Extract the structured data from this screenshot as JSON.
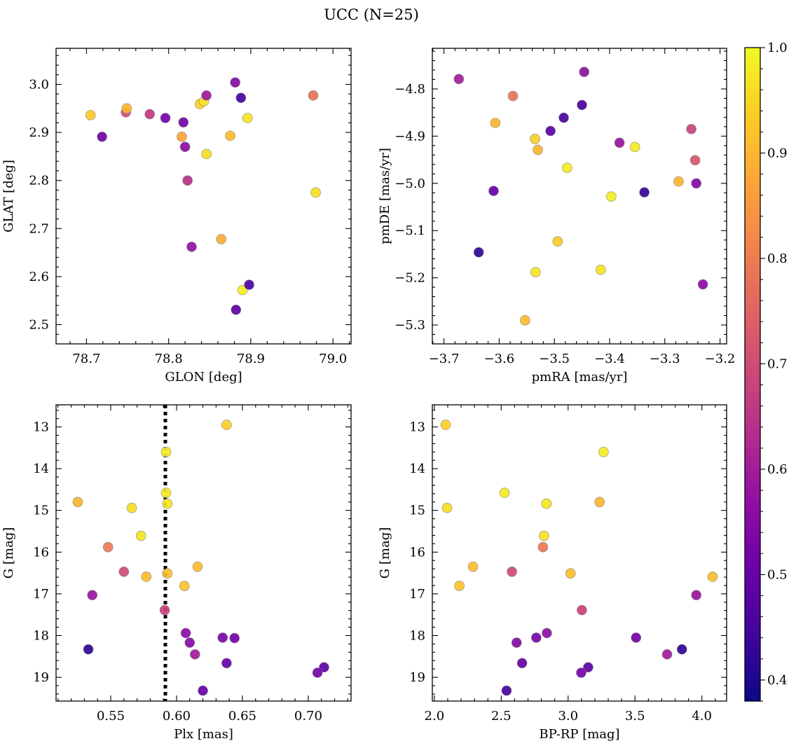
{
  "figure": {
    "title": "UCC (N=25)"
  },
  "colorbar": {
    "range": [
      0.38,
      1.0
    ],
    "ticks": [
      0.4,
      0.5,
      0.6,
      0.7,
      0.8,
      0.9,
      1.0
    ],
    "tick_labels": [
      "0.4",
      "0.5",
      "0.6",
      "0.7",
      "0.8",
      "0.9",
      "1.0"
    ],
    "colormap": "plasma"
  },
  "chart_data": [
    {
      "type": "scatter",
      "id": "glon-glat",
      "xlabel": "GLON [deg]",
      "ylabel": "GLAT [deg]",
      "xlim": [
        78.663,
        79.022
      ],
      "ylim": [
        2.46,
        3.075
      ],
      "y_inverted": false,
      "xticks": [
        78.7,
        78.8,
        78.9,
        79.0
      ],
      "xtick_labels": [
        "78.7",
        "78.8",
        "78.9",
        "79.0"
      ],
      "yticks": [
        2.5,
        2.6,
        2.7,
        2.8,
        2.9,
        3.0
      ],
      "ytick_labels": [
        "2.5",
        "2.6",
        "2.7",
        "2.8",
        "2.9",
        "3.0"
      ],
      "points": [
        {
          "x": 78.705,
          "y": 2.936,
          "c": 0.93
        },
        {
          "x": 78.719,
          "y": 2.891,
          "c": 0.52
        },
        {
          "x": 78.748,
          "y": 2.942,
          "c": 0.7
        },
        {
          "x": 78.749,
          "y": 2.95,
          "c": 0.9
        },
        {
          "x": 78.777,
          "y": 2.938,
          "c": 0.66
        },
        {
          "x": 78.796,
          "y": 2.93,
          "c": 0.52
        },
        {
          "x": 78.816,
          "y": 2.891,
          "c": 0.87
        },
        {
          "x": 78.818,
          "y": 2.921,
          "c": 0.52
        },
        {
          "x": 78.82,
          "y": 2.87,
          "c": 0.56
        },
        {
          "x": 78.823,
          "y": 2.8,
          "c": 0.64
        },
        {
          "x": 78.828,
          "y": 2.662,
          "c": 0.57
        },
        {
          "x": 78.838,
          "y": 2.959,
          "c": 0.94
        },
        {
          "x": 78.843,
          "y": 2.965,
          "c": 0.97
        },
        {
          "x": 78.846,
          "y": 2.855,
          "c": 0.96
        },
        {
          "x": 78.846,
          "y": 2.977,
          "c": 0.59
        },
        {
          "x": 78.864,
          "y": 2.678,
          "c": 0.88
        },
        {
          "x": 78.875,
          "y": 2.893,
          "c": 0.91
        },
        {
          "x": 78.881,
          "y": 3.004,
          "c": 0.55
        },
        {
          "x": 78.882,
          "y": 2.531,
          "c": 0.48
        },
        {
          "x": 78.888,
          "y": 2.972,
          "c": 0.45
        },
        {
          "x": 78.89,
          "y": 2.572,
          "c": 0.98
        },
        {
          "x": 78.896,
          "y": 2.93,
          "c": 0.97
        },
        {
          "x": 78.898,
          "y": 2.583,
          "c": 0.46
        },
        {
          "x": 78.976,
          "y": 2.977,
          "c": 0.78
        },
        {
          "x": 78.979,
          "y": 2.775,
          "c": 0.96
        }
      ]
    },
    {
      "type": "scatter",
      "id": "pmra-pmde",
      "xlabel": "pmRA [mas/yr]",
      "ylabel": "pmDE [mas/yr]",
      "xlim": [
        -3.721,
        -3.188
      ],
      "ylim": [
        -5.34,
        -4.714
      ],
      "y_inverted": false,
      "xticks": [
        -3.7,
        -3.6,
        -3.5,
        -3.4,
        -3.3,
        -3.2
      ],
      "xtick_labels": [
        "−3.7",
        "−3.6",
        "−3.5",
        "−3.4",
        "−3.3",
        "−3.2"
      ],
      "yticks": [
        -5.3,
        -5.2,
        -5.1,
        -5.0,
        -4.9,
        -4.8
      ],
      "ytick_labels": [
        "−5.3",
        "−5.2",
        "−5.1",
        "−5.0",
        "−4.9",
        "−4.8"
      ],
      "points": [
        {
          "x": -3.673,
          "y": -4.779,
          "c": 0.6
        },
        {
          "x": -3.637,
          "y": -5.146,
          "c": 0.42
        },
        {
          "x": -3.61,
          "y": -5.016,
          "c": 0.5
        },
        {
          "x": -3.607,
          "y": -4.872,
          "c": 0.9
        },
        {
          "x": -3.575,
          "y": -4.815,
          "c": 0.78
        },
        {
          "x": -3.553,
          "y": -5.29,
          "c": 0.91
        },
        {
          "x": -3.535,
          "y": -4.906,
          "c": 0.94
        },
        {
          "x": -3.534,
          "y": -5.188,
          "c": 0.97
        },
        {
          "x": -3.53,
          "y": -4.929,
          "c": 0.9
        },
        {
          "x": -3.507,
          "y": -4.889,
          "c": 0.48
        },
        {
          "x": -3.494,
          "y": -5.123,
          "c": 0.93
        },
        {
          "x": -3.483,
          "y": -4.861,
          "c": 0.45
        },
        {
          "x": -3.477,
          "y": -4.967,
          "c": 0.98
        },
        {
          "x": -3.45,
          "y": -4.834,
          "c": 0.45
        },
        {
          "x": -3.446,
          "y": -4.764,
          "c": 0.57
        },
        {
          "x": -3.416,
          "y": -5.183,
          "c": 0.97
        },
        {
          "x": -3.397,
          "y": -5.028,
          "c": 0.98
        },
        {
          "x": -3.382,
          "y": -4.914,
          "c": 0.58
        },
        {
          "x": -3.354,
          "y": -4.923,
          "c": 0.98
        },
        {
          "x": -3.337,
          "y": -5.019,
          "c": 0.43
        },
        {
          "x": -3.275,
          "y": -4.996,
          "c": 0.9
        },
        {
          "x": -3.252,
          "y": -4.885,
          "c": 0.68
        },
        {
          "x": -3.245,
          "y": -4.951,
          "c": 0.72
        },
        {
          "x": -3.243,
          "y": -5.0,
          "c": 0.55
        },
        {
          "x": -3.231,
          "y": -5.214,
          "c": 0.56
        }
      ]
    },
    {
      "type": "scatter",
      "id": "plx-g",
      "xlabel": "Plx [mas]",
      "ylabel": "G [mag]",
      "xlim": [
        0.5085,
        0.7325
      ],
      "ylim": [
        19.57,
        12.47
      ],
      "y_inverted": true,
      "xticks": [
        0.55,
        0.6,
        0.65,
        0.7
      ],
      "xtick_labels": [
        "0.55",
        "0.60",
        "0.65",
        "0.70"
      ],
      "yticks": [
        13,
        14,
        15,
        16,
        17,
        18,
        19
      ],
      "ytick_labels": [
        "13",
        "14",
        "15",
        "16",
        "17",
        "18",
        "19"
      ],
      "reference_line_x": 0.5915,
      "points": [
        {
          "x": 0.638,
          "y": 12.95,
          "c": 0.94
        },
        {
          "x": 0.592,
          "y": 13.6,
          "c": 0.98
        },
        {
          "x": 0.592,
          "y": 14.58,
          "c": 0.98
        },
        {
          "x": 0.525,
          "y": 14.8,
          "c": 0.9
        },
        {
          "x": 0.566,
          "y": 14.94,
          "c": 0.96
        },
        {
          "x": 0.593,
          "y": 14.84,
          "c": 0.97
        },
        {
          "x": 0.573,
          "y": 15.61,
          "c": 0.97
        },
        {
          "x": 0.548,
          "y": 15.88,
          "c": 0.79
        },
        {
          "x": 0.616,
          "y": 16.35,
          "c": 0.91
        },
        {
          "x": 0.56,
          "y": 16.47,
          "c": 0.7
        },
        {
          "x": 0.593,
          "y": 16.51,
          "c": 0.91
        },
        {
          "x": 0.577,
          "y": 16.59,
          "c": 0.91
        },
        {
          "x": 0.606,
          "y": 16.81,
          "c": 0.92
        },
        {
          "x": 0.536,
          "y": 17.03,
          "c": 0.58
        },
        {
          "x": 0.591,
          "y": 17.39,
          "c": 0.68
        },
        {
          "x": 0.607,
          "y": 17.94,
          "c": 0.56
        },
        {
          "x": 0.635,
          "y": 18.05,
          "c": 0.53
        },
        {
          "x": 0.644,
          "y": 18.06,
          "c": 0.52
        },
        {
          "x": 0.61,
          "y": 18.17,
          "c": 0.55
        },
        {
          "x": 0.533,
          "y": 18.33,
          "c": 0.42
        },
        {
          "x": 0.614,
          "y": 18.45,
          "c": 0.6
        },
        {
          "x": 0.638,
          "y": 18.66,
          "c": 0.5
        },
        {
          "x": 0.712,
          "y": 18.76,
          "c": 0.48
        },
        {
          "x": 0.707,
          "y": 18.89,
          "c": 0.52
        },
        {
          "x": 0.62,
          "y": 19.32,
          "c": 0.5
        }
      ]
    },
    {
      "type": "scatter",
      "id": "bprp-g",
      "xlabel": "BP-RP [mag]",
      "ylabel": "G [mag]",
      "xlim": [
        1.985,
        4.185
      ],
      "ylim": [
        19.57,
        12.47
      ],
      "y_inverted": true,
      "xticks": [
        2.0,
        2.5,
        3.0,
        3.5,
        4.0
      ],
      "xtick_labels": [
        "2.0",
        "2.5",
        "3.0",
        "3.5",
        "4.0"
      ],
      "yticks": [
        13,
        14,
        15,
        16,
        17,
        18,
        19
      ],
      "ytick_labels": [
        "13",
        "14",
        "15",
        "16",
        "17",
        "18",
        "19"
      ],
      "points": [
        {
          "x": 2.085,
          "y": 12.95,
          "c": 0.94
        },
        {
          "x": 3.265,
          "y": 13.6,
          "c": 0.98
        },
        {
          "x": 2.525,
          "y": 14.58,
          "c": 0.98
        },
        {
          "x": 2.095,
          "y": 14.94,
          "c": 0.96
        },
        {
          "x": 3.235,
          "y": 14.8,
          "c": 0.9
        },
        {
          "x": 2.838,
          "y": 14.84,
          "c": 0.97
        },
        {
          "x": 2.82,
          "y": 15.61,
          "c": 0.97
        },
        {
          "x": 2.812,
          "y": 15.88,
          "c": 0.79
        },
        {
          "x": 2.289,
          "y": 16.35,
          "c": 0.91
        },
        {
          "x": 2.58,
          "y": 16.47,
          "c": 0.7
        },
        {
          "x": 3.018,
          "y": 16.51,
          "c": 0.91
        },
        {
          "x": 2.187,
          "y": 16.81,
          "c": 0.92
        },
        {
          "x": 4.08,
          "y": 16.59,
          "c": 0.91
        },
        {
          "x": 3.958,
          "y": 17.03,
          "c": 0.58
        },
        {
          "x": 3.103,
          "y": 17.39,
          "c": 0.68
        },
        {
          "x": 2.841,
          "y": 17.94,
          "c": 0.56
        },
        {
          "x": 2.762,
          "y": 18.05,
          "c": 0.53
        },
        {
          "x": 3.508,
          "y": 18.05,
          "c": 0.52
        },
        {
          "x": 2.615,
          "y": 18.17,
          "c": 0.55
        },
        {
          "x": 3.851,
          "y": 18.33,
          "c": 0.42
        },
        {
          "x": 3.74,
          "y": 18.45,
          "c": 0.6
        },
        {
          "x": 2.656,
          "y": 18.66,
          "c": 0.5
        },
        {
          "x": 3.15,
          "y": 18.76,
          "c": 0.48
        },
        {
          "x": 3.098,
          "y": 18.89,
          "c": 0.52
        },
        {
          "x": 2.54,
          "y": 19.32,
          "c": 0.45
        }
      ]
    }
  ]
}
